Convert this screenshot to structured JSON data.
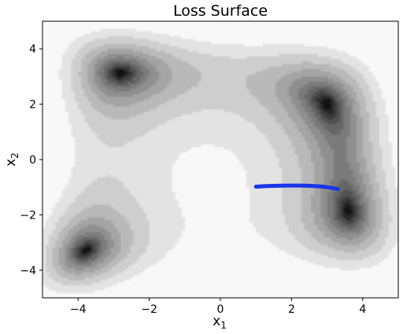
{
  "chart_data": {
    "type": "contour",
    "title": "Loss Surface",
    "xlabel": {
      "base": "x",
      "sub": "1"
    },
    "ylabel": {
      "base": "x",
      "sub": "2"
    },
    "xlim": [
      -5,
      5
    ],
    "ylim": [
      -5,
      5
    ],
    "xticks": [
      -4,
      -2,
      0,
      2,
      4
    ],
    "yticks": [
      -4,
      -2,
      0,
      2,
      4
    ],
    "xtick_labels": [
      "−4",
      "−2",
      "0",
      "2",
      "4"
    ],
    "ytick_labels": [
      "−4",
      "−2",
      "0",
      "2",
      "4"
    ],
    "grid": false,
    "colormap": "gray",
    "minima": [
      {
        "x": 3.0,
        "y": 2.0
      },
      {
        "x": -2.805,
        "y": 3.131
      },
      {
        "x": -3.779,
        "y": -3.283
      },
      {
        "x": 3.584,
        "y": -1.848
      }
    ],
    "local_maximum": {
      "x": -0.27,
      "y": -0.92
    },
    "series": [
      {
        "path": [
          [
            1.0,
            -0.98
          ],
          [
            1.3,
            -0.96
          ],
          [
            1.6,
            -0.95
          ],
          [
            1.9,
            -0.94
          ],
          [
            2.2,
            -0.94
          ],
          [
            2.5,
            -0.95
          ],
          [
            2.8,
            -0.97
          ],
          [
            3.0,
            -1.0
          ],
          [
            3.2,
            -1.04
          ],
          [
            3.3,
            -1.07
          ]
        ],
        "color": "#1a36e6"
      }
    ]
  }
}
